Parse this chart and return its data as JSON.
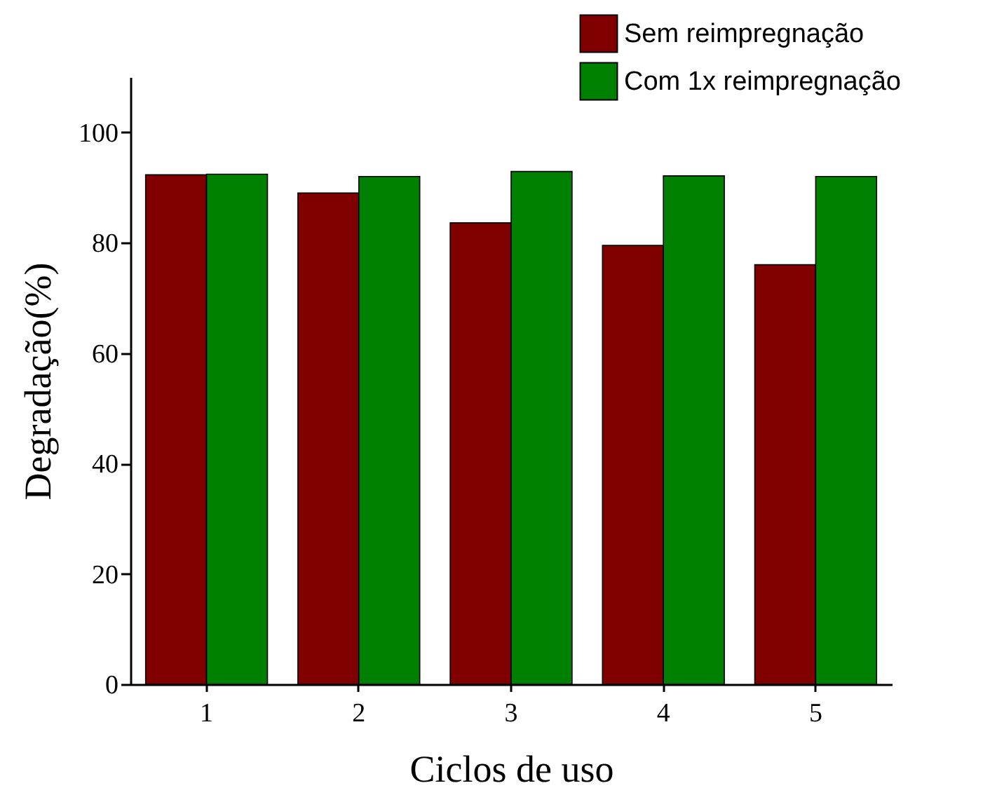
{
  "chart_data": {
    "type": "bar",
    "xlabel": "Ciclos de uso",
    "ylabel": "Degradação(%)",
    "categories": [
      "1",
      "2",
      "3",
      "4",
      "5"
    ],
    "series": [
      {
        "name": "Sem reimpregnação",
        "color": "#800000",
        "values": [
          92.3,
          89.0,
          83.6,
          79.5,
          76.0
        ]
      },
      {
        "name": "Com 1x reimpregnação",
        "color": "#008000",
        "values": [
          92.4,
          92.0,
          92.9,
          92.1,
          92.0
        ]
      }
    ],
    "ylim": [
      0,
      110
    ],
    "yticks": [
      0,
      20,
      40,
      60,
      80,
      100
    ],
    "legend": "top right",
    "grid": false
  }
}
